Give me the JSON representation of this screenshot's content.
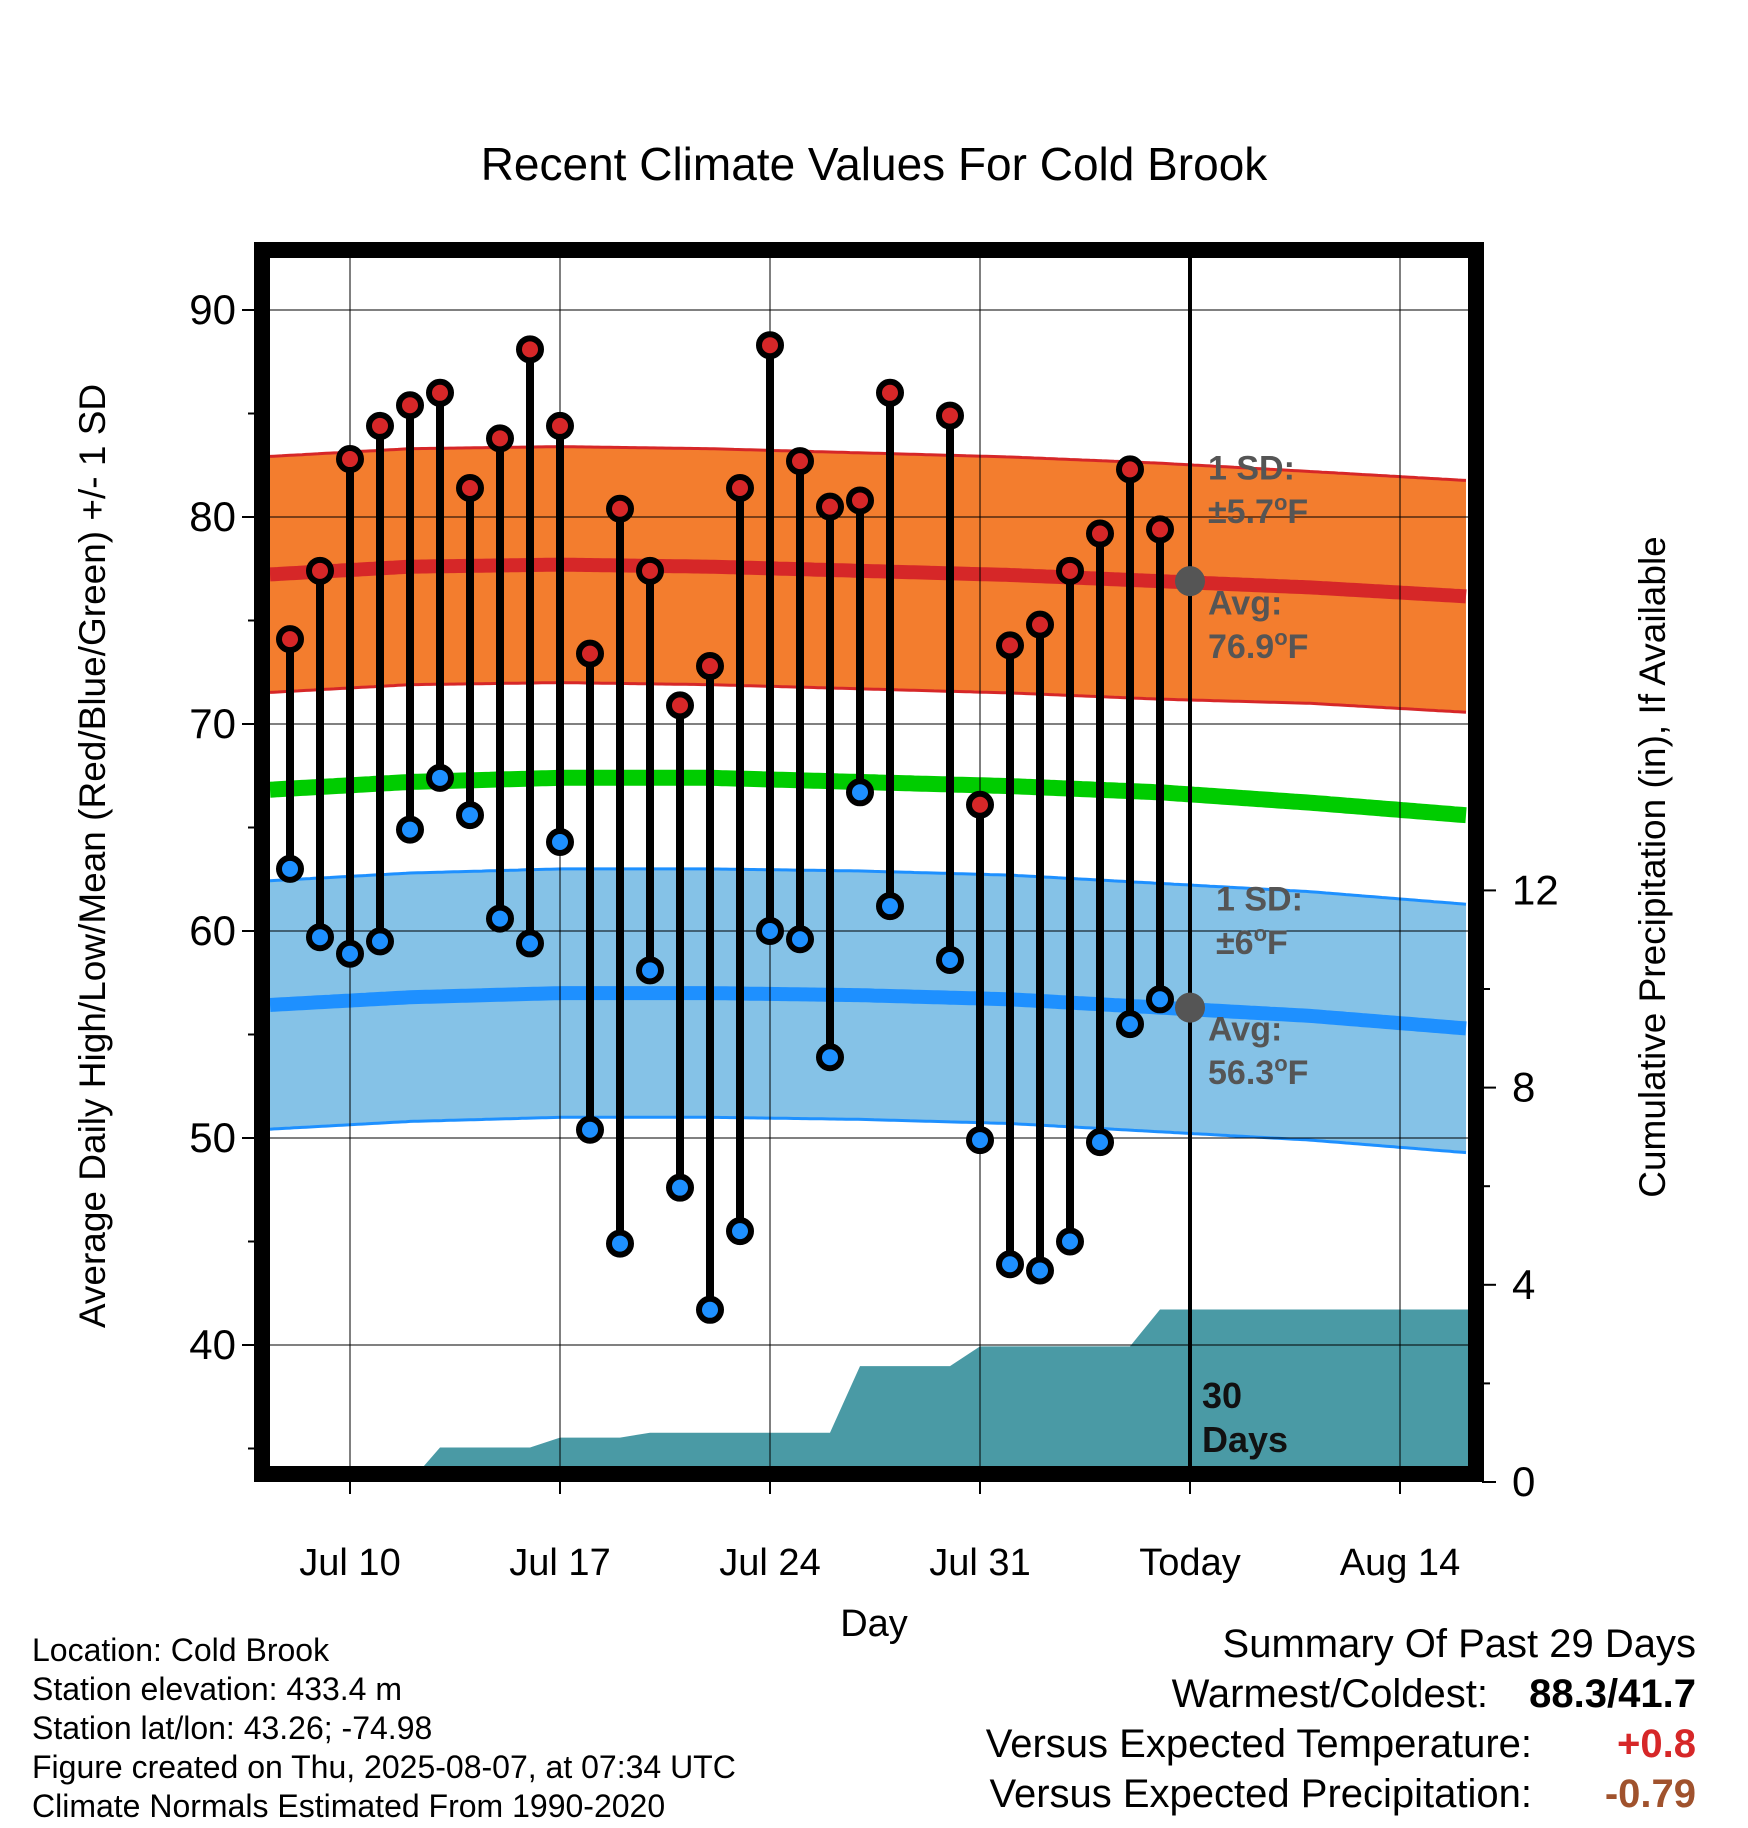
{
  "chart_data": {
    "type": "line",
    "title": "Recent Climate Values For Cold Brook",
    "xlabel": "Day",
    "ylabel": "Average Daily High/Low/Mean (Red/Blue/Green) +/- 1 SD",
    "y2label": "Cumulative Precipitation (in), If Available",
    "ylim": [
      34,
      92
    ],
    "y2lim": [
      0,
      24
    ],
    "yticks": [
      "40",
      "50",
      "60",
      "70",
      "80",
      "90"
    ],
    "y2ticks": [
      "0",
      "4",
      "8",
      "12"
    ],
    "x_day_range": [
      "Jul 7",
      "Aug 17"
    ],
    "x_ticks": [
      {
        "day": "Jul 10",
        "label": "Jul 10"
      },
      {
        "day": "Jul 17",
        "label": "Jul 17"
      },
      {
        "day": "Jul 24",
        "label": "Jul 24"
      },
      {
        "day": "Jul 31",
        "label": "Jul 31"
      },
      {
        "day": "Aug 7",
        "label": "Today"
      },
      {
        "day": "Aug 14",
        "label": "Aug 14"
      }
    ],
    "today": "Aug 7",
    "grid": true,
    "series": [
      {
        "name": "High",
        "color": "#d62728",
        "x": [
          "Jul 8",
          "Jul 9",
          "Jul 10",
          "Jul 11",
          "Jul 12",
          "Jul 13",
          "Jul 14",
          "Jul 15",
          "Jul 16",
          "Jul 17",
          "Jul 18",
          "Jul 19",
          "Jul 20",
          "Jul 21",
          "Jul 22",
          "Jul 23",
          "Jul 24",
          "Jul 25",
          "Jul 26",
          "Jul 27",
          "Jul 28",
          "Jul 30",
          "Jul 31",
          "Aug 1",
          "Aug 2",
          "Aug 3",
          "Aug 4",
          "Aug 5",
          "Aug 6"
        ],
        "values": [
          74.1,
          77.4,
          82.8,
          84.4,
          85.4,
          86.0,
          81.4,
          83.8,
          88.1,
          84.4,
          73.4,
          80.4,
          77.4,
          70.9,
          72.8,
          81.4,
          88.3,
          82.7,
          80.5,
          80.8,
          86.0,
          84.9,
          66.1,
          73.8,
          74.8,
          77.4,
          79.2,
          82.3,
          79.4
        ]
      },
      {
        "name": "Low",
        "color": "#1e90ff",
        "x": [
          "Jul 8",
          "Jul 9",
          "Jul 10",
          "Jul 11",
          "Jul 12",
          "Jul 13",
          "Jul 14",
          "Jul 15",
          "Jul 16",
          "Jul 17",
          "Jul 18",
          "Jul 19",
          "Jul 20",
          "Jul 21",
          "Jul 22",
          "Jul 23",
          "Jul 24",
          "Jul 25",
          "Jul 26",
          "Jul 27",
          "Jul 28",
          "Jul 30",
          "Jul 31",
          "Aug 1",
          "Aug 2",
          "Aug 3",
          "Aug 4",
          "Aug 5",
          "Aug 6"
        ],
        "values": [
          63.0,
          59.7,
          58.9,
          59.5,
          64.9,
          67.4,
          65.6,
          60.6,
          59.4,
          64.3,
          50.4,
          44.9,
          58.1,
          47.6,
          41.7,
          45.5,
          60.0,
          59.6,
          53.9,
          66.7,
          61.2,
          58.6,
          49.9,
          43.9,
          43.6,
          45.0,
          49.8,
          55.5,
          56.7
        ]
      },
      {
        "name": "Normal High",
        "color": "#d62728",
        "x": [
          "Jul 7",
          "Jul 12",
          "Jul 17",
          "Jul 22",
          "Jul 27",
          "Aug 1",
          "Aug 6",
          "Aug 11",
          "Aug 17"
        ],
        "values": [
          77.2,
          77.6,
          77.7,
          77.6,
          77.4,
          77.2,
          76.9,
          76.6,
          76.1
        ],
        "sd": [
          5.7,
          5.7,
          5.7,
          5.7,
          5.7,
          5.7,
          5.7,
          5.6,
          5.6
        ]
      },
      {
        "name": "Normal Low",
        "color": "#1e90ff",
        "x": [
          "Jul 7",
          "Jul 12",
          "Jul 17",
          "Jul 22",
          "Jul 27",
          "Aug 1",
          "Aug 6",
          "Aug 11",
          "Aug 17"
        ],
        "values": [
          56.4,
          56.8,
          57.0,
          57.0,
          56.9,
          56.7,
          56.3,
          55.9,
          55.2
        ],
        "sd": [
          6.0,
          6.0,
          6.0,
          6.0,
          6.0,
          6.0,
          6.0,
          6.0,
          6.0
        ]
      },
      {
        "name": "Normal Mean",
        "color": "#00cc00",
        "x": [
          "Jul 7",
          "Jul 12",
          "Jul 17",
          "Jul 22",
          "Jul 27",
          "Aug 1",
          "Aug 6",
          "Aug 11",
          "Aug 17"
        ],
        "values": [
          66.8,
          67.2,
          67.4,
          67.4,
          67.2,
          67.0,
          66.7,
          66.2,
          65.5
        ]
      },
      {
        "name": "Cumulative Precipitation",
        "color": "#4a9aa5",
        "x": [
          "Jul 11",
          "Jul 12",
          "Jul 13",
          "Jul 16",
          "Jul 17",
          "Jul 19",
          "Jul 20",
          "Jul 26",
          "Jul 27",
          "Jul 30",
          "Jul 31",
          "Aug 5",
          "Aug 6",
          "Aug 17"
        ],
        "values": [
          0.0,
          0.0,
          0.7,
          0.7,
          0.9,
          0.9,
          1.0,
          1.0,
          2.35,
          2.35,
          2.75,
          2.75,
          3.5,
          3.5
        ]
      }
    ],
    "annotations": {
      "high_sd_label": "1 SD:",
      "high_sd_value": "±5.7",
      "high_avg_label": "Avg:",
      "high_avg_value": "76.9",
      "low_sd_label": "1 SD:",
      "low_sd_value": "±6",
      "low_avg_label": "Avg:",
      "low_avg_value": "56.3",
      "degree_symbol": "o",
      "unit": "F",
      "today_value_high": 76.9,
      "today_value_low": 56.3,
      "days_number": "30",
      "days_word": "Days"
    }
  },
  "info": {
    "location": "Location: Cold Brook",
    "elevation": "Station elevation: 433.4 m",
    "latlon": "Station lat/lon: 43.26; -74.98",
    "created": "Figure created on Thu, 2025-08-07, at 07:34 UTC",
    "normals": "Climate Normals Estimated From 1990-2020"
  },
  "summary": {
    "title": "Summary Of Past 29 Days",
    "warm_cold_label": "Warmest/Coldest:",
    "warm_value": "88.3",
    "slash": "/",
    "cold_value": "41.7",
    "temp_label": "Versus Expected Temperature:",
    "temp_value": "+0.8",
    "temp_color": "#d62728",
    "precip_label": "Versus Expected Precipitation:",
    "precip_value": "-0.79",
    "precip_color": "#a0522d"
  }
}
